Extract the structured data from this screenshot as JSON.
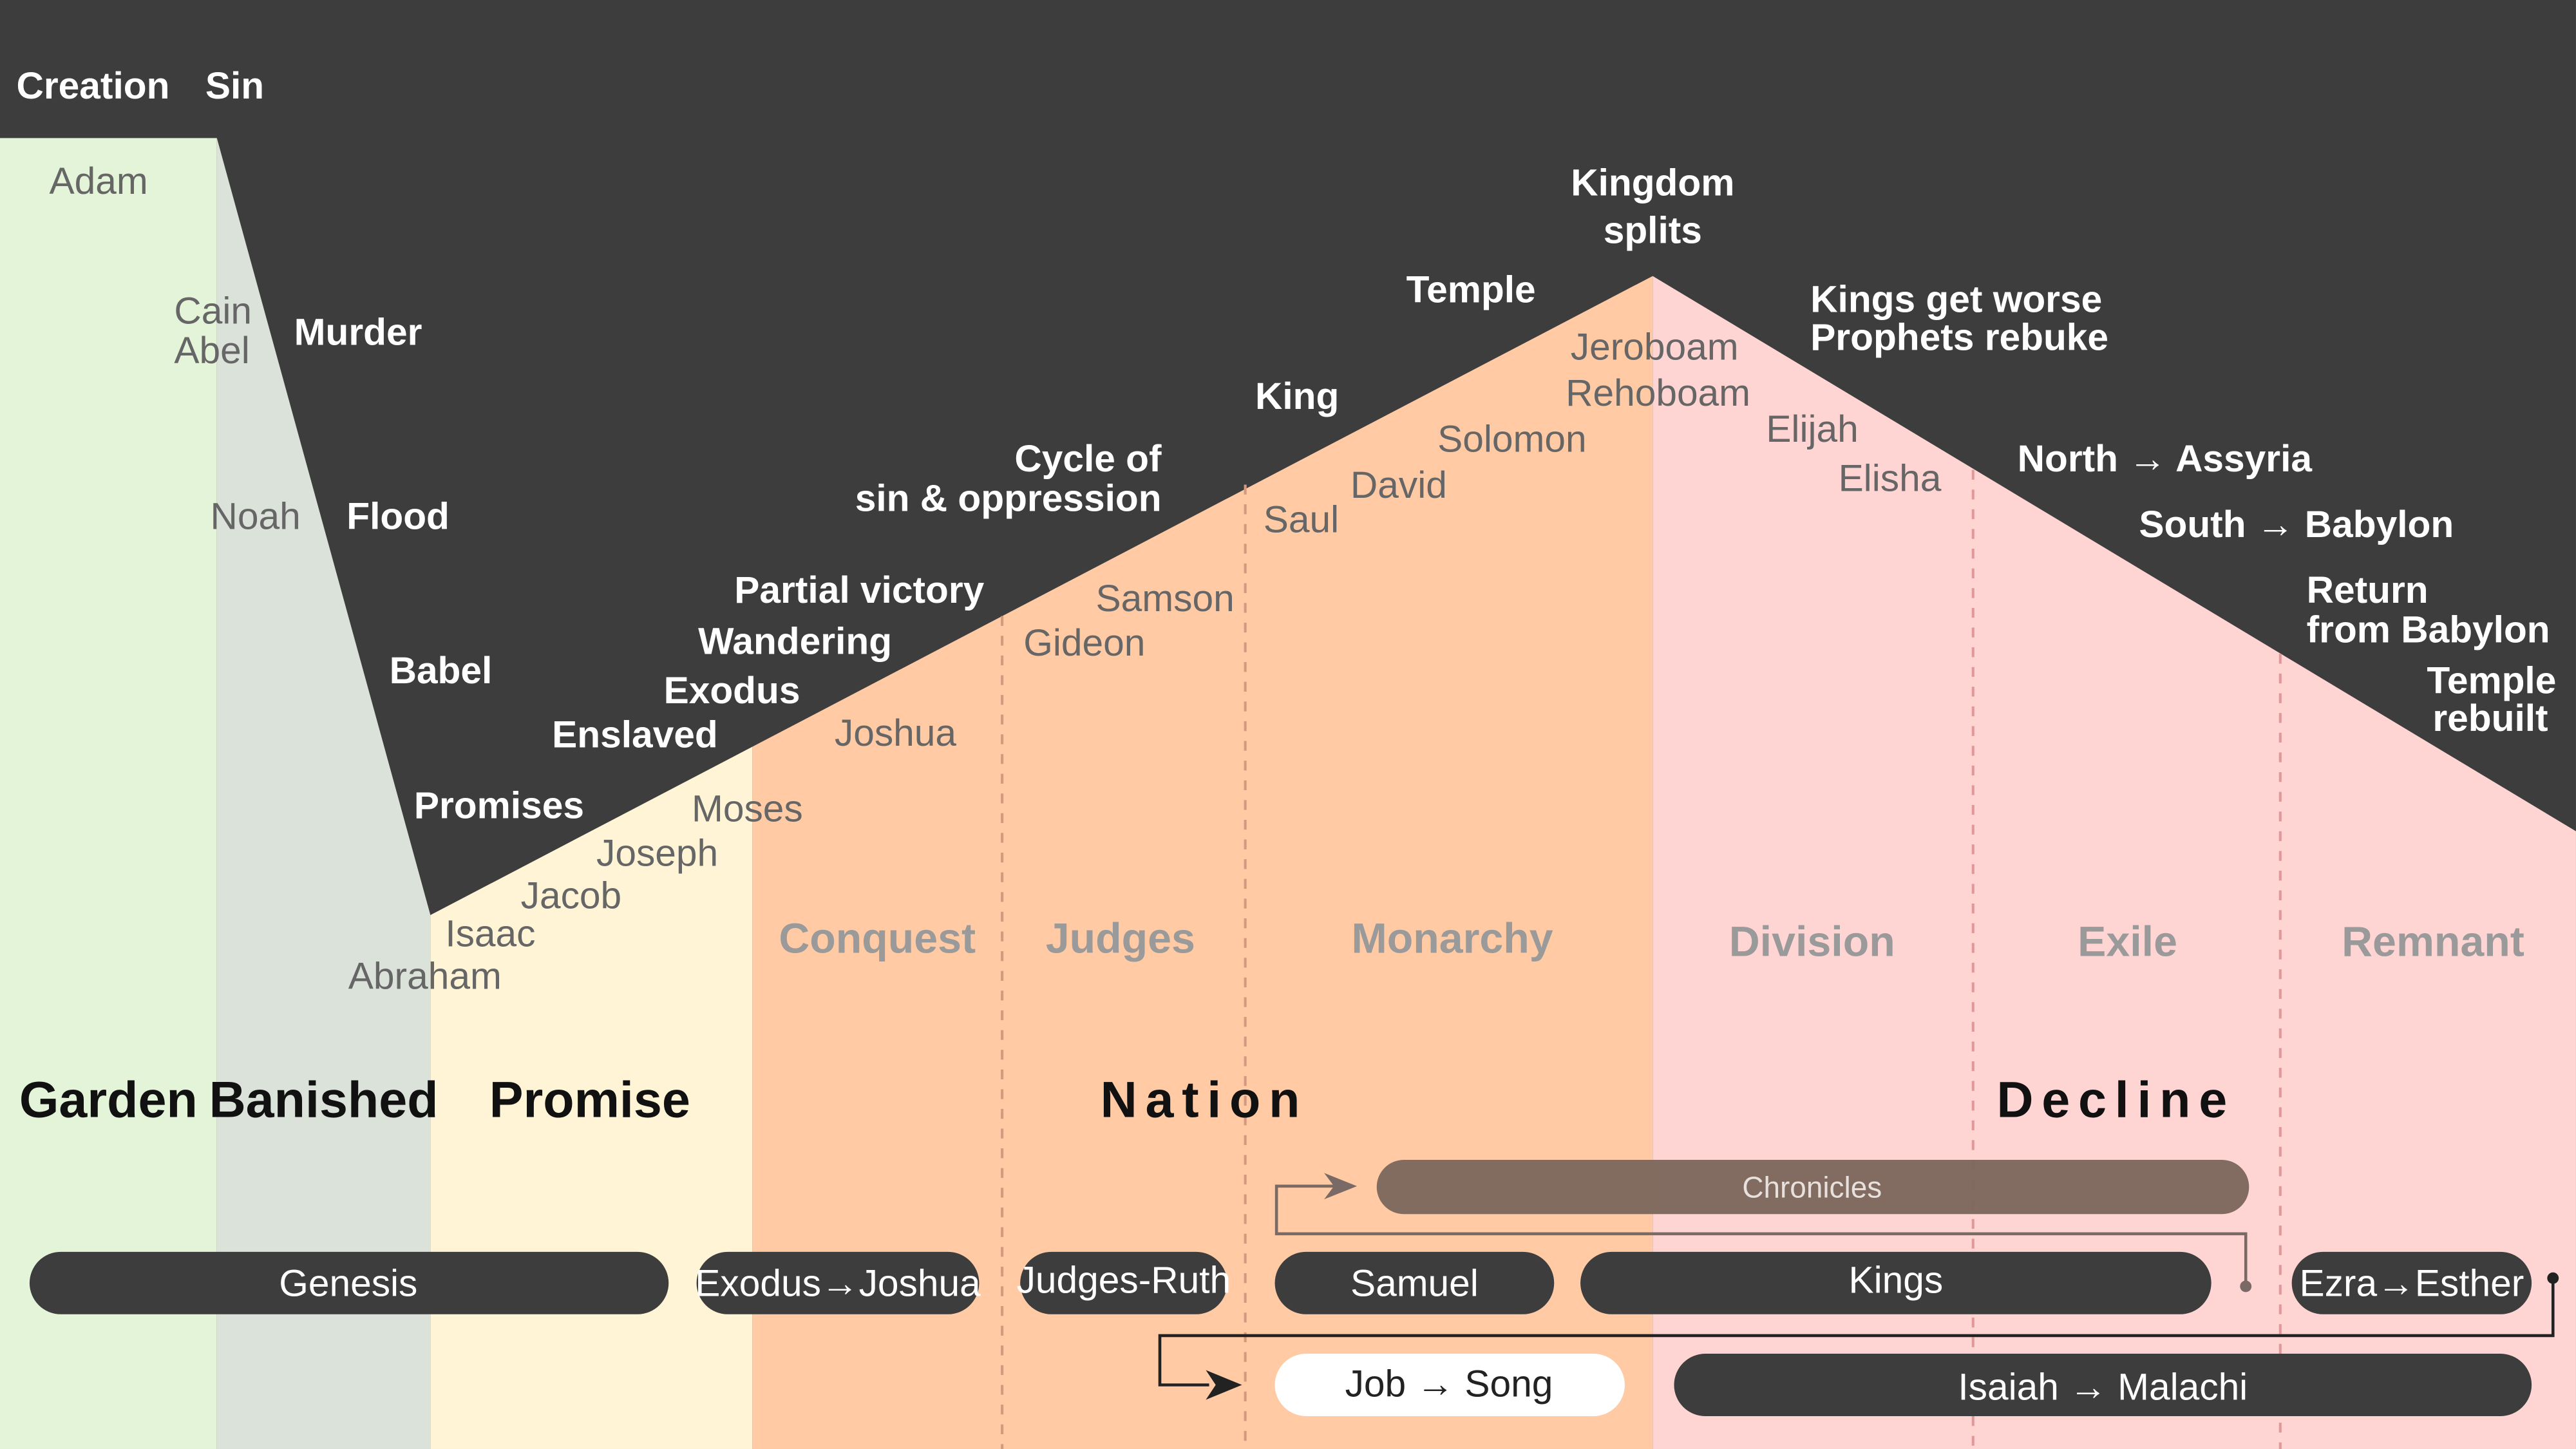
{
  "colors": {
    "dark": "#3d3d3d",
    "garden": "#e4f4d8",
    "banished": "#dbe2da",
    "promise": "#fff4d6",
    "nation": "#ffcaa4",
    "decline": "#ffd5d4",
    "pill": "#3d3d3d",
    "chronicles": "#7e675d"
  },
  "events": {
    "creation": "Creation",
    "sin": "Sin",
    "murder": "Murder",
    "flood": "Flood",
    "babel": "Babel",
    "promises": "Promises",
    "enslaved": "Enslaved",
    "exodus": "Exodus",
    "wandering": "Wandering",
    "partial_victory": "Partial victory",
    "cycle_line1": "Cycle of",
    "cycle_line2": "sin & oppression",
    "king": "King",
    "temple": "Temple",
    "kingdom_line1": "Kingdom",
    "kingdom_line2": "splits",
    "kings_worse": "Kings get worse",
    "prophets_rebuke": "Prophets rebuke",
    "north_assyria": "North → Assyria",
    "south_babylon": "South → Babylon",
    "return_line1": "Return",
    "return_line2": "from Babylon",
    "temple_rebuilt_line1": "Temple",
    "temple_rebuilt_line2": "rebuilt"
  },
  "people": {
    "adam": "Adam",
    "cain": "Cain",
    "abel": "Abel",
    "noah": "Noah",
    "abraham": "Abraham",
    "isaac": "Isaac",
    "jacob": "Jacob",
    "joseph": "Joseph",
    "moses": "Moses",
    "joshua": "Joshua",
    "gideon": "Gideon",
    "samson": "Samson",
    "saul": "Saul",
    "david": "David",
    "solomon": "Solomon",
    "jeroboam": "Jeroboam",
    "rehoboam": "Rehoboam",
    "elijah": "Elijah",
    "elisha": "Elisha"
  },
  "eras": {
    "conquest": "Conquest",
    "judges": "Judges",
    "monarchy": "Monarchy",
    "division": "Division",
    "exile": "Exile",
    "remnant": "Remnant"
  },
  "periods": {
    "garden": "Garden",
    "banished": "Banished",
    "promise": "Promise",
    "nation": "Nation",
    "decline": "Decline"
  },
  "books": {
    "genesis": "Genesis",
    "exodus_joshua": "Exodus→Joshua",
    "judges_ruth": "Judges-Ruth",
    "samuel": "Samuel",
    "kings": "Kings",
    "ezra_esther": "Ezra→Esther",
    "chronicles": "Chronicles",
    "job_song": "Job → Song",
    "isaiah_malachi": "Isaiah → Malachi"
  }
}
